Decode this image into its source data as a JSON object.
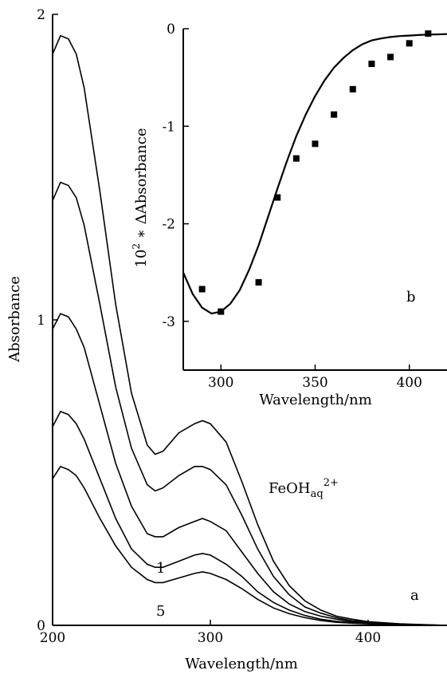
{
  "chart_data": [
    {
      "id": "a",
      "panel_label": "a",
      "type": "line",
      "xlabel": "Wavelength/nm",
      "ylabel": "Absorbance",
      "xlim": [
        200,
        450
      ],
      "ylim": [
        0,
        2
      ],
      "x_ticks": [
        200,
        300,
        400
      ],
      "y_ticks": [
        0,
        1,
        2
      ],
      "x": [
        200,
        205,
        210,
        215,
        220,
        230,
        240,
        250,
        260,
        265,
        270,
        280,
        290,
        295,
        300,
        310,
        320,
        330,
        340,
        350,
        360,
        370,
        380,
        390,
        400,
        420,
        450
      ],
      "series": [
        {
          "values": [
            1.87,
            1.93,
            1.92,
            1.87,
            1.76,
            1.42,
            1.05,
            0.76,
            0.59,
            0.56,
            0.57,
            0.63,
            0.66,
            0.67,
            0.66,
            0.6,
            0.47,
            0.33,
            0.21,
            0.13,
            0.08,
            0.05,
            0.03,
            0.02,
            0.012,
            0.005,
            0.0
          ]
        },
        {
          "values": [
            1.39,
            1.45,
            1.44,
            1.4,
            1.31,
            1.05,
            0.78,
            0.58,
            0.46,
            0.44,
            0.45,
            0.49,
            0.52,
            0.52,
            0.51,
            0.46,
            0.36,
            0.25,
            0.16,
            0.1,
            0.06,
            0.04,
            0.025,
            0.015,
            0.01,
            0.004,
            0.0
          ]
        },
        {
          "values": [
            0.97,
            1.02,
            1.01,
            0.97,
            0.91,
            0.72,
            0.53,
            0.39,
            0.3,
            0.29,
            0.29,
            0.32,
            0.34,
            0.35,
            0.34,
            0.31,
            0.24,
            0.17,
            0.11,
            0.07,
            0.045,
            0.03,
            0.02,
            0.012,
            0.008,
            0.003,
            0.0
          ]
        },
        {
          "values": [
            0.65,
            0.7,
            0.69,
            0.66,
            0.61,
            0.48,
            0.35,
            0.25,
            0.2,
            0.19,
            0.19,
            0.21,
            0.23,
            0.235,
            0.23,
            0.2,
            0.16,
            0.11,
            0.075,
            0.05,
            0.032,
            0.02,
            0.013,
            0.009,
            0.006,
            0.002,
            0.0
          ]
        },
        {
          "values": [
            0.48,
            0.52,
            0.51,
            0.49,
            0.45,
            0.35,
            0.26,
            0.19,
            0.15,
            0.14,
            0.14,
            0.155,
            0.17,
            0.175,
            0.17,
            0.15,
            0.12,
            0.085,
            0.057,
            0.038,
            0.025,
            0.016,
            0.01,
            0.007,
            0.005,
            0.002,
            0.0
          ]
        }
      ],
      "annotations": [
        {
          "text": "1",
          "x": 285,
          "y": 0.6
        },
        {
          "text": "5",
          "x": 285,
          "y": 0.07
        },
        {
          "text": "FeOH",
          "sub": "aq",
          "sup": "2+",
          "x": 352,
          "y": 0.45
        },
        {
          "text": "a",
          "x": 422,
          "y": 0.14
        }
      ]
    },
    {
      "id": "b",
      "panel_label": "b",
      "type": "scatter",
      "xlabel": "Wavelength/nm",
      "ylabel_prefix": "10",
      "ylabel_sup": "2",
      "ylabel_rest": " ∗ ΔAbsorbance",
      "xlim": [
        280,
        420
      ],
      "ylim": [
        -3.5,
        0
      ],
      "x_ticks": [
        300,
        350,
        400
      ],
      "y_ticks": [
        0,
        -1,
        -2,
        -3
      ],
      "x_tick_labels": [
        "300",
        "350",
        "400"
      ],
      "y_tick_labels": [
        "0",
        "-1",
        "-2",
        "-3"
      ],
      "points": {
        "x": [
          290,
          300,
          320,
          330,
          340,
          350,
          360,
          370,
          380,
          390,
          400,
          410
        ],
        "y": [
          -2.67,
          -2.9,
          -2.6,
          -1.73,
          -1.33,
          -1.18,
          -0.88,
          -0.62,
          -0.36,
          -0.29,
          -0.15,
          -0.05
        ]
      },
      "fit": {
        "x": [
          280,
          285,
          290,
          295,
          300,
          305,
          310,
          315,
          320,
          325,
          330,
          335,
          340,
          345,
          350,
          355,
          360,
          365,
          370,
          375,
          380,
          385,
          390,
          395,
          400,
          405,
          410,
          415,
          420
        ],
        "y": [
          -2.5,
          -2.72,
          -2.86,
          -2.92,
          -2.9,
          -2.82,
          -2.68,
          -2.47,
          -2.22,
          -1.93,
          -1.64,
          -1.36,
          -1.1,
          -0.88,
          -0.69,
          -0.53,
          -0.4,
          -0.3,
          -0.22,
          -0.16,
          -0.12,
          -0.1,
          -0.085,
          -0.075,
          -0.07,
          -0.065,
          -0.06,
          -0.058,
          -0.055
        ]
      }
    }
  ]
}
